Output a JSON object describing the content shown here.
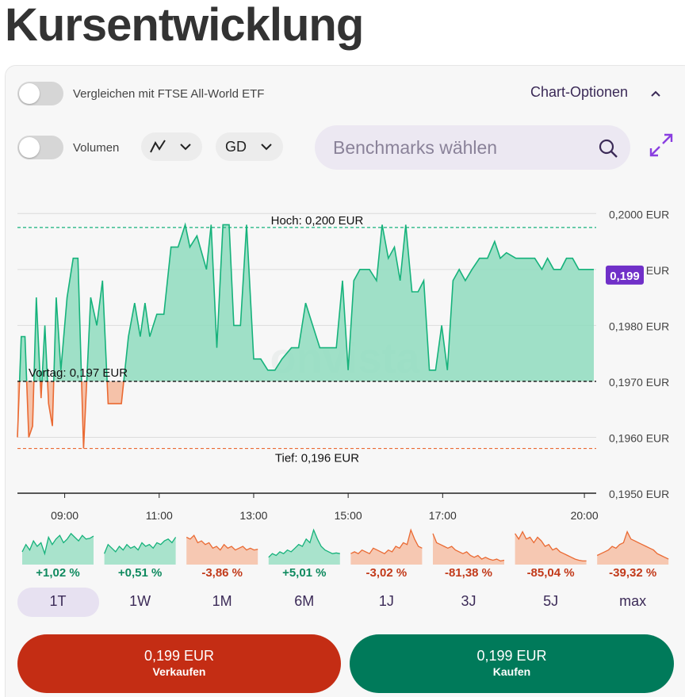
{
  "page": {
    "title": "Kursentwicklung"
  },
  "compare": {
    "label": "Vergleichen mit FTSE All-World ETF",
    "enabled": false
  },
  "chart_options": {
    "label": "Chart-Optionen"
  },
  "volume": {
    "label": "Volumen",
    "enabled": false
  },
  "chart_type": {
    "icon": "line-chart-icon"
  },
  "indicator": {
    "label": "GD"
  },
  "benchmarks": {
    "placeholder": "Benchmarks wählen"
  },
  "chart_data": {
    "type": "area",
    "currency": "EUR",
    "watermark": "onvista",
    "y_range": [
      0.195,
      0.2005
    ],
    "y_ticks": [
      {
        "value": 0.2,
        "label": "0,2000 EUR"
      },
      {
        "value": 0.199,
        "label": "0,1990 EUR"
      },
      {
        "value": 0.198,
        "label": "0,1980 EUR"
      },
      {
        "value": 0.197,
        "label": "0,1970 EUR"
      },
      {
        "value": 0.196,
        "label": "0,1960 EUR"
      },
      {
        "value": 0.195,
        "label": "0,1950 EUR"
      }
    ],
    "x_range": [
      8.0,
      20.25
    ],
    "x_ticks": [
      {
        "value": 9.0,
        "label": "09:00"
      },
      {
        "value": 11.0,
        "label": "11:00"
      },
      {
        "value": 13.0,
        "label": "13:00"
      },
      {
        "value": 15.0,
        "label": "15:00"
      },
      {
        "value": 17.0,
        "label": "17:00"
      },
      {
        "value": 20.0,
        "label": "20:00"
      }
    ],
    "high": {
      "value": 0.19975,
      "label": "Hoch: 0,200 EUR"
    },
    "low": {
      "value": 0.1958,
      "label": "Tief: 0,196 EUR"
    },
    "previous_close": {
      "value": 0.197,
      "label": "Vortag: 0,197 EUR"
    },
    "current": {
      "value": 0.1989,
      "label": "0,199"
    },
    "grid": true,
    "colors": {
      "up_line": "#16b27b",
      "up_fill": "#8fdcbe",
      "down_line": "#ea6a33",
      "down_fill": "#f5b89b",
      "current_badge": "#7030c8"
    },
    "points": [
      [
        8.0,
        0.196
      ],
      [
        8.08,
        0.1978
      ],
      [
        8.16,
        0.1978
      ],
      [
        8.24,
        0.196
      ],
      [
        8.32,
        0.1962
      ],
      [
        8.4,
        0.1985
      ],
      [
        8.5,
        0.1967
      ],
      [
        8.58,
        0.198
      ],
      [
        8.66,
        0.1966
      ],
      [
        8.74,
        0.1962
      ],
      [
        8.82,
        0.1985
      ],
      [
        8.92,
        0.1972
      ],
      [
        9.05,
        0.1985
      ],
      [
        9.18,
        0.1992
      ],
      [
        9.28,
        0.1992
      ],
      [
        9.4,
        0.1958
      ],
      [
        9.55,
        0.1985
      ],
      [
        9.68,
        0.198
      ],
      [
        9.8,
        0.1988
      ],
      [
        9.92,
        0.1966
      ],
      [
        10.05,
        0.1966
      ],
      [
        10.2,
        0.1966
      ],
      [
        10.35,
        0.1978
      ],
      [
        10.48,
        0.1984
      ],
      [
        10.6,
        0.1978
      ],
      [
        10.7,
        0.1984
      ],
      [
        10.8,
        0.1978
      ],
      [
        10.95,
        0.1982
      ],
      [
        11.1,
        0.1982
      ],
      [
        11.25,
        0.1994
      ],
      [
        11.4,
        0.1994
      ],
      [
        11.55,
        0.1998
      ],
      [
        11.65,
        0.1994
      ],
      [
        11.8,
        0.1996
      ],
      [
        12.0,
        0.199
      ],
      [
        12.1,
        0.1998
      ],
      [
        12.22,
        0.1976
      ],
      [
        12.35,
        0.1998
      ],
      [
        12.48,
        0.1998
      ],
      [
        12.58,
        0.198
      ],
      [
        12.72,
        0.198
      ],
      [
        12.85,
        0.1998
      ],
      [
        13.0,
        0.1974
      ],
      [
        13.15,
        0.1974
      ],
      [
        13.3,
        0.1972
      ],
      [
        13.45,
        0.1972
      ],
      [
        13.6,
        0.1974
      ],
      [
        13.8,
        0.1976
      ],
      [
        13.95,
        0.1976
      ],
      [
        14.1,
        0.1984
      ],
      [
        14.25,
        0.198
      ],
      [
        14.4,
        0.1976
      ],
      [
        14.6,
        0.1976
      ],
      [
        14.75,
        0.1976
      ],
      [
        14.88,
        0.1988
      ],
      [
        15.0,
        0.1972
      ],
      [
        15.12,
        0.1988
      ],
      [
        15.25,
        0.199
      ],
      [
        15.45,
        0.199
      ],
      [
        15.6,
        0.1988
      ],
      [
        15.72,
        0.1998
      ],
      [
        15.85,
        0.1992
      ],
      [
        15.98,
        0.1994
      ],
      [
        16.1,
        0.1988
      ],
      [
        16.22,
        0.1998
      ],
      [
        16.35,
        0.1986
      ],
      [
        16.48,
        0.1986
      ],
      [
        16.6,
        0.1988
      ],
      [
        16.72,
        0.1972
      ],
      [
        16.85,
        0.1972
      ],
      [
        16.98,
        0.198
      ],
      [
        17.1,
        0.1972
      ],
      [
        17.22,
        0.1988
      ],
      [
        17.35,
        0.199
      ],
      [
        17.48,
        0.1988
      ],
      [
        17.62,
        0.199
      ],
      [
        17.78,
        0.1992
      ],
      [
        17.95,
        0.1992
      ],
      [
        18.1,
        0.1995
      ],
      [
        18.22,
        0.1992
      ],
      [
        18.35,
        0.1993
      ],
      [
        18.55,
        0.1992
      ],
      [
        18.75,
        0.1992
      ],
      [
        18.95,
        0.1992
      ],
      [
        19.1,
        0.199
      ],
      [
        19.22,
        0.1992
      ],
      [
        19.35,
        0.199
      ],
      [
        19.5,
        0.199
      ],
      [
        19.62,
        0.1992
      ],
      [
        19.75,
        0.1992
      ],
      [
        19.88,
        0.199
      ],
      [
        20.05,
        0.199
      ],
      [
        20.2,
        0.199
      ]
    ]
  },
  "periods": [
    {
      "label": "1T",
      "change": "+1,02 %",
      "trend": "up",
      "active": true
    },
    {
      "label": "1W",
      "change": "+0,51 %",
      "trend": "up",
      "active": false
    },
    {
      "label": "1M",
      "change": "-3,86 %",
      "trend": "down",
      "active": false
    },
    {
      "label": "6M",
      "change": "+5,01 %",
      "trend": "up",
      "active": false
    },
    {
      "label": "1J",
      "change": "-3,02 %",
      "trend": "down",
      "active": false
    },
    {
      "label": "3J",
      "change": "-81,38 %",
      "trend": "down",
      "active": false
    },
    {
      "label": "5J",
      "change": "-85,04 %",
      "trend": "down",
      "active": false
    },
    {
      "label": "max",
      "change": "-39,32 %",
      "trend": "down",
      "active": false
    }
  ],
  "sparklines": [
    [
      0.35,
      0.55,
      0.4,
      0.65,
      0.5,
      0.6,
      0.3,
      0.75,
      0.55,
      0.7,
      0.8,
      0.6,
      0.7,
      0.85,
      0.75,
      0.65,
      0.8,
      0.7,
      0.72,
      0.78
    ],
    [
      0.3,
      0.55,
      0.45,
      0.35,
      0.5,
      0.4,
      0.55,
      0.45,
      0.5,
      0.4,
      0.6,
      0.5,
      0.55,
      0.45,
      0.6,
      0.55,
      0.65,
      0.7,
      0.6,
      0.75
    ],
    [
      0.75,
      0.7,
      0.8,
      0.6,
      0.65,
      0.55,
      0.6,
      0.45,
      0.5,
      0.4,
      0.55,
      0.45,
      0.5,
      0.4,
      0.45,
      0.5,
      0.4,
      0.45,
      0.4,
      0.42
    ],
    [
      0.2,
      0.3,
      0.25,
      0.35,
      0.3,
      0.4,
      0.35,
      0.45,
      0.55,
      0.5,
      0.7,
      0.6,
      0.95,
      0.7,
      0.5,
      0.4,
      0.35,
      0.3,
      0.32,
      0.3
    ],
    [
      0.3,
      0.35,
      0.3,
      0.4,
      0.35,
      0.3,
      0.45,
      0.4,
      0.35,
      0.3,
      0.4,
      0.35,
      0.5,
      0.45,
      0.6,
      0.55,
      0.95,
      0.7,
      0.5,
      0.45
    ],
    [
      0.85,
      0.6,
      0.55,
      0.5,
      0.45,
      0.5,
      0.4,
      0.35,
      0.3,
      0.35,
      0.25,
      0.2,
      0.25,
      0.15,
      0.2,
      0.15,
      0.12,
      0.15,
      0.1,
      0.12
    ],
    [
      0.85,
      0.7,
      0.9,
      0.7,
      0.75,
      0.6,
      0.75,
      0.65,
      0.5,
      0.55,
      0.4,
      0.45,
      0.35,
      0.3,
      0.25,
      0.2,
      0.15,
      0.12,
      0.1,
      0.1
    ],
    [
      0.25,
      0.3,
      0.35,
      0.4,
      0.5,
      0.45,
      0.55,
      0.6,
      0.9,
      0.7,
      0.65,
      0.6,
      0.55,
      0.5,
      0.45,
      0.4,
      0.3,
      0.25,
      0.2,
      0.15
    ]
  ],
  "actions": {
    "sell": {
      "price": "0,199 EUR",
      "label": "Verkaufen"
    },
    "buy": {
      "price": "0,199 EUR",
      "label": "Kaufen"
    }
  }
}
